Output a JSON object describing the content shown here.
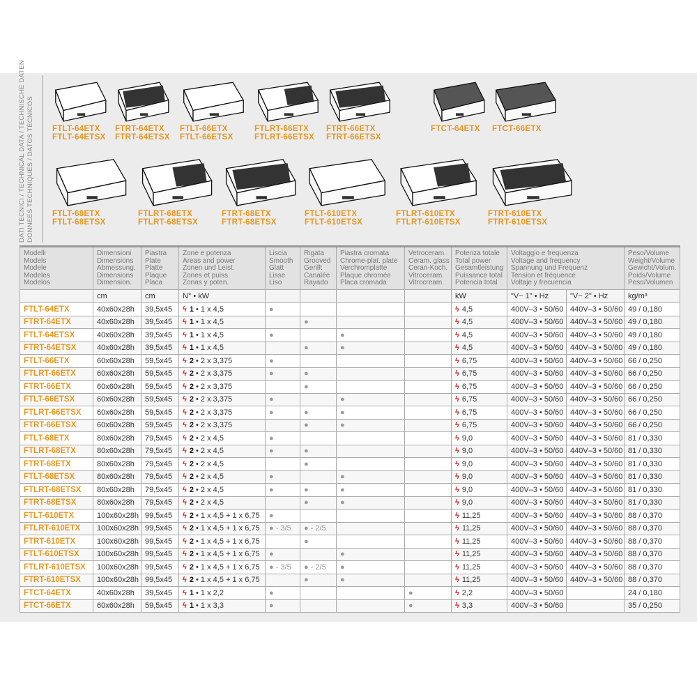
{
  "side_title": [
    "DATI TECNICI / TECHNICAL DATA / TECHNISCHE DATEN",
    "DONNEES TECHNIQUES / DATOS TECNICOS"
  ],
  "products": [
    {
      "names": [
        "FTLT-64ETX",
        "FTLT-64ETSX"
      ],
      "surface": "smooth"
    },
    {
      "names": [
        "FTRT-64ETX",
        "FTRT-64ETSX"
      ],
      "surface": "grooved"
    },
    {
      "names": [
        "FTLT-66ETX",
        "FTLT-66ETSX"
      ],
      "surface": "smooth"
    },
    {
      "names": [
        "FTLRT-66ETX",
        "FTLRT-66ETSX"
      ],
      "surface": "half"
    },
    {
      "names": [
        "FTRT-66ETX",
        "FTRT-66ETSX"
      ],
      "surface": "grooved"
    },
    {
      "names": [
        "FTCT-64ETX"
      ],
      "surface": "glass"
    },
    {
      "names": [
        "FTCT-66ETX"
      ],
      "surface": "glass"
    },
    {
      "names": [
        "FTLT-68ETX",
        "FTLT-68ETSX"
      ],
      "surface": "smooth"
    },
    {
      "names": [
        "FTLRT-68ETX",
        "FTLRT-68ETSX"
      ],
      "surface": "half"
    },
    {
      "names": [
        "FTRT-68ETX",
        "FTRT-68ETSX"
      ],
      "surface": "grooved"
    },
    {
      "names": [
        "FTLT-610ETX",
        "FTLT-610ETSX"
      ],
      "surface": "smooth"
    },
    {
      "names": [
        "FTLRT-610ETX",
        "FTLRT-610ETSX"
      ],
      "surface": "half"
    },
    {
      "names": [
        "FTRT-610ETX",
        "FTRT-610ETSX"
      ],
      "surface": "grooved"
    }
  ],
  "headers": [
    [
      "Modelli",
      "Models",
      "Modele",
      "Modeles",
      "Modelos"
    ],
    [
      "Dimensioni",
      "Dimensions",
      "Abmessung.",
      "Dimensions",
      "Dimension."
    ],
    [
      "Piastra",
      "Plate",
      "Platte",
      "Plaque",
      "Placa"
    ],
    [
      "Zone e potenza",
      "Areas and power",
      "Zonen und Leist.",
      "Zones et puiss.",
      "Zonas y poten."
    ],
    [
      "Liscia",
      "Smooth",
      "Glatt",
      "Lisse",
      "Liso"
    ],
    [
      "Rigata",
      "Grooved",
      "Gerillt",
      "Canalée",
      "Rayado"
    ],
    [
      "Piastra cromata",
      "Chrome-plat. plate",
      "Verchromplatte",
      "Plaque chromée",
      "Placa cromada"
    ],
    [
      "Vetroceram.",
      "Ceram. glass",
      "Ceran-Koch.",
      "Vitroceram.",
      "Vitrocream."
    ],
    [
      "Potenza totale",
      "Total power",
      "Gesamtleistung",
      "Puissance total",
      "Potencia total"
    ],
    [
      "Voltaggio e frequenza",
      "Voltage and frequency",
      "Spannung und Frequenz",
      "Tension et fréquence",
      "Voltaje y frecuencia"
    ],
    [
      "Peso/Volume",
      "Weight/Volume",
      "Gewicht/Volum.",
      "Poids/Volume",
      "Peso/Volumen"
    ]
  ],
  "units": [
    "",
    "cm",
    "cm",
    "N° • kW",
    "",
    "",
    "",
    "",
    "kW",
    "\"V~ 1\" • Hz",
    "\"V~ 2\" • Hz",
    "kg/m³"
  ],
  "colors": {
    "model": "#e8961e",
    "bolt": "#d21e1e",
    "background": "#ececec"
  },
  "rows": [
    [
      "FTLT-64ETX",
      "40x60x28h",
      "39,5x45",
      "1",
      "• 1 x 4,5",
      "●",
      "",
      "",
      "",
      "4,5",
      "400V–3 • 50/60",
      "440V–3 • 50/60",
      "49 / 0,180"
    ],
    [
      "FTRT-64ETX",
      "40x60x28h",
      "39,5x45",
      "1",
      "• 1 x 4,5",
      "",
      "●",
      "",
      "",
      "4,5",
      "400V–3 • 50/60",
      "440V–3 • 50/60",
      "49 / 0,180"
    ],
    [
      "FTLT-64ETSX",
      "40x60x28h",
      "39,5x45",
      "1",
      "• 1 x 4,5",
      "●",
      "",
      "●",
      "",
      "4,5",
      "400V–3 • 50/60",
      "440V–3 • 50/60",
      "49 / 0,180"
    ],
    [
      "FTRT-64ETSX",
      "40x60x28h",
      "39,5x45",
      "1",
      "• 1 x 4,5",
      "",
      "●",
      "●",
      "",
      "4,5",
      "400V–3 • 50/60",
      "440V–3 • 50/60",
      "49 / 0,180"
    ],
    [
      "FTLT-66ETX",
      "60x60x28h",
      "59,5x45",
      "2",
      "• 2 x 3,375",
      "●",
      "",
      "",
      "",
      "6,75",
      "400V–3 • 50/60",
      "440V–3 • 50/60",
      "66 / 0,250"
    ],
    [
      "FTLRT-66ETX",
      "60x60x28h",
      "59,5x45",
      "2",
      "• 2 x 3,375",
      "●",
      "●",
      "",
      "",
      "6,75",
      "400V–3 • 50/60",
      "440V–3 • 50/60",
      "66 / 0,250"
    ],
    [
      "FTRT-66ETX",
      "60x60x28h",
      "59,5x45",
      "2",
      "• 2 x 3,375",
      "",
      "●",
      "",
      "",
      "6,75",
      "400V–3 • 50/60",
      "440V–3 • 50/60",
      "66 / 0,250"
    ],
    [
      "FTLT-66ETSX",
      "60x60x28h",
      "59,5x45",
      "2",
      "• 2 x 3,375",
      "●",
      "",
      "●",
      "",
      "6,75",
      "400V–3 • 50/60",
      "440V–3 • 50/60",
      "66 / 0,250"
    ],
    [
      "FTLRT-66ETSX",
      "60x60x28h",
      "59,5x45",
      "2",
      "• 2 x 3,375",
      "●",
      "●",
      "●",
      "",
      "6,75",
      "400V–3 • 50/60",
      "440V–3 • 50/60",
      "66 / 0,250"
    ],
    [
      "FTRT-66ETSX",
      "60x60x28h",
      "59,5x45",
      "2",
      "• 2 x 3,375",
      "",
      "●",
      "●",
      "",
      "6,75",
      "400V–3 • 50/60",
      "440V–3 • 50/60",
      "66 / 0,250"
    ],
    [
      "FTLT-68ETX",
      "80x60x28h",
      "79,5x45",
      "2",
      "• 2 x 4,5",
      "●",
      "",
      "",
      "",
      "9,0",
      "400V–3 • 50/60",
      "440V–3 • 50/60",
      "81 / 0,330"
    ],
    [
      "FTLRT-68ETX",
      "80x60x28h",
      "79,5x45",
      "2",
      "• 2 x 4,5",
      "●",
      "●",
      "",
      "",
      "9,0",
      "400V–3 • 50/60",
      "440V–3 • 50/60",
      "81 / 0,330"
    ],
    [
      "FTRT-68ETX",
      "80x60x28h",
      "79,5x45",
      "2",
      "• 2 x 4,5",
      "",
      "●",
      "",
      "",
      "9,0",
      "400V–3 • 50/60",
      "440V–3 • 50/60",
      "81 / 0,330"
    ],
    [
      "FTLT-68ETSX",
      "80x60x28h",
      "79,5x45",
      "2",
      "• 2 x 4,5",
      "●",
      "",
      "●",
      "",
      "9,0",
      "400V–3 • 50/60",
      "440V–3 • 50/60",
      "81 / 0,330"
    ],
    [
      "FTLRT-68ETSX",
      "80x60x28h",
      "79,5x45",
      "2",
      "• 2 x 4,5",
      "●",
      "●",
      "●",
      "",
      "9,0",
      "400V–3 • 50/60",
      "440V–3 • 50/60",
      "81 / 0,330"
    ],
    [
      "FTRT-68ETSX",
      "80x60x28h",
      "79,5x45",
      "2",
      "• 2 x 4,5",
      "",
      "●",
      "●",
      "",
      "9,0",
      "400V–3 • 50/60",
      "440V–3 • 50/60",
      "81 / 0,330"
    ],
    [
      "FTLT-610ETX",
      "100x60x28h",
      "99,5x45",
      "2",
      "• 1 x 4,5 + 1 x 6,75",
      "●",
      "",
      "",
      "",
      "11,25",
      "400V–3 • 50/60",
      "440V–3 • 50/60",
      "88 / 0,370"
    ],
    [
      "FTLRT-610ETX",
      "100x60x28h",
      "99,5x45",
      "2",
      "• 1 x 4,5 + 1 x 6,75",
      "● - 3/5",
      "● - 2/5",
      "",
      "",
      "11,25",
      "400V–3 • 50/60",
      "440V–3 • 50/60",
      "88 / 0,370"
    ],
    [
      "FTRT-610ETX",
      "100x60x28h",
      "99,5x45",
      "2",
      "• 1 x 4,5 + 1 x 6,75",
      "",
      "●",
      "",
      "",
      "11,25",
      "400V–3 • 50/60",
      "440V–3 • 50/60",
      "88 / 0,370"
    ],
    [
      "FTLT-610ETSX",
      "100x60x28h",
      "99,5x45",
      "2",
      "• 1 x 4,5 + 1 x 6,75",
      "●",
      "",
      "●",
      "",
      "11,25",
      "400V–3 • 50/60",
      "440V–3 • 50/60",
      "88 / 0,370"
    ],
    [
      "FTLRT-610ETSX",
      "100x60x28h",
      "99,5x45",
      "2",
      "• 1 x 4,5 + 1 x 6,75",
      "● - 3/5",
      "● - 2/5",
      "●",
      "",
      "11,25",
      "400V–3 • 50/60",
      "440V–3 • 50/60",
      "88 / 0,370"
    ],
    [
      "FTRT-610ETSX",
      "100x60x28h",
      "99,5x45",
      "2",
      "• 1 x 4,5 + 1 x 6,75",
      "",
      "●",
      "●",
      "",
      "11,25",
      "400V–3 • 50/60",
      "440V–3 • 50/60",
      "88 / 0,370"
    ],
    [
      "FTCT-64ETX",
      "40x60x28h",
      "39,5x45",
      "1",
      "• 1 x 2,2",
      "●",
      "",
      "",
      "●",
      "2,2",
      "400V–3 • 50/60",
      "",
      "24 / 0,180"
    ],
    [
      "FTCT-66ETX",
      "60x60x28h",
      "59,5x45",
      "1",
      "• 1 x 3,3",
      "●",
      "",
      "",
      "●",
      "3,3",
      "400V–3 • 50/60",
      "",
      "35 / 0,250"
    ]
  ]
}
